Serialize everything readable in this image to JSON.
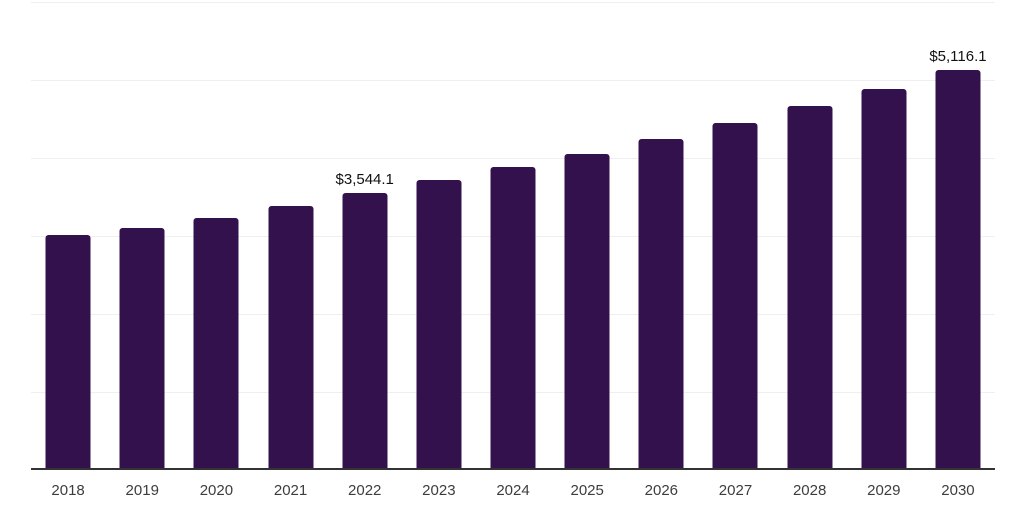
{
  "chart": {
    "background_color": "#ffffff",
    "bar_color": "#33114C",
    "gridline_color": "#efefef",
    "axis_color": "#333333",
    "tick_label_color": "#3d3d3d",
    "value_label_color": "#111111"
  },
  "chart_data": {
    "type": "bar",
    "title": "",
    "xlabel": "",
    "ylabel": "",
    "categories": [
      "2018",
      "2019",
      "2020",
      "2021",
      "2022",
      "2023",
      "2024",
      "2025",
      "2026",
      "2027",
      "2028",
      "2029",
      "2030"
    ],
    "values": [
      2995.0,
      3095.0,
      3220.0,
      3370.0,
      3544.1,
      3705.0,
      3875.0,
      4040.0,
      4230.0,
      4440.0,
      4650.0,
      4875.0,
      5116.1
    ],
    "value_labels": {
      "2022": "$3,544.1",
      "2030": "$5,116.1"
    },
    "ylim": [
      0,
      6000
    ],
    "gridline_step": 1000,
    "grid": true,
    "legend": false,
    "y_axis_labels_visible": false
  }
}
